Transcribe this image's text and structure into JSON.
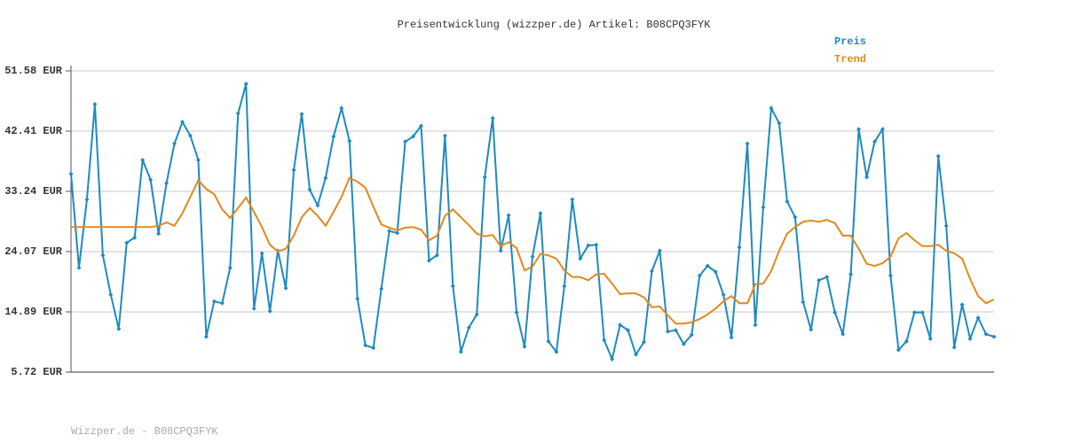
{
  "chart_data": {
    "type": "line",
    "title": "Preisentwicklung (wizzper.de) Artikel: B08CPQ3FYK",
    "footer": "Wizzper.de - B08CPQ3FYK",
    "ylim": [
      5.72,
      51.58
    ],
    "yticks": [
      {
        "value": 5.72,
        "label": "5.72 EUR"
      },
      {
        "value": 14.89,
        "label": "14.89 EUR"
      },
      {
        "value": 24.07,
        "label": "24.07 EUR"
      },
      {
        "value": 33.24,
        "label": "33.24 EUR"
      },
      {
        "value": 42.41,
        "label": "42.41 EUR"
      },
      {
        "value": 51.58,
        "label": "51.58 EUR"
      }
    ],
    "grid": true,
    "legend": "top-right",
    "series": [
      {
        "name": "Preis",
        "color": "#1f8ac0",
        "markers": true,
        "values": [
          35.9,
          21.6,
          32.0,
          46.5,
          23.5,
          17.5,
          12.3,
          25.4,
          26.2,
          38.0,
          35.0,
          26.8,
          34.5,
          40.5,
          43.8,
          41.7,
          38.0,
          11.1,
          16.5,
          16.2,
          21.6,
          45.1,
          49.6,
          15.4,
          23.8,
          15.0,
          24.2,
          18.5,
          36.5,
          45.0,
          33.5,
          31.1,
          35.3,
          41.6,
          45.9,
          40.9,
          16.9,
          9.8,
          9.4,
          18.4,
          27.2,
          26.9,
          40.8,
          41.6,
          43.2,
          22.7,
          23.5,
          41.7,
          18.8,
          8.8,
          12.5,
          14.5,
          35.4,
          44.4,
          24.2,
          29.6,
          14.8,
          9.6,
          23.3,
          29.9,
          10.4,
          8.8,
          18.8,
          32.0,
          23.0,
          25.0,
          25.1,
          10.6,
          7.7,
          12.9,
          12.1,
          8.4,
          10.3,
          21.1,
          24.2,
          11.9,
          12.1,
          10.0,
          11.4,
          20.4,
          21.9,
          21.0,
          17.5,
          11.0,
          24.7,
          40.5,
          12.9,
          30.8,
          45.9,
          43.6,
          31.7,
          29.3,
          16.4,
          12.2,
          19.7,
          20.2,
          14.8,
          11.5,
          20.6,
          42.7,
          35.4,
          40.8,
          42.7,
          20.4,
          9.1,
          10.4,
          14.8,
          14.8,
          10.8,
          38.6,
          28.0,
          9.5,
          16.0,
          10.8,
          14.0,
          11.5,
          11.1
        ]
      },
      {
        "name": "Trend",
        "color": "#e08a1e",
        "markers": false,
        "values": [
          27.8,
          27.8,
          27.8,
          27.8,
          27.8,
          27.8,
          27.8,
          27.8,
          27.8,
          27.8,
          27.8,
          28.0,
          28.5,
          28.0,
          29.9,
          32.4,
          34.9,
          33.6,
          32.8,
          30.5,
          29.2,
          30.7,
          32.3,
          30.1,
          27.8,
          25.1,
          24.1,
          24.5,
          26.5,
          29.3,
          30.7,
          29.5,
          28.0,
          30.1,
          32.4,
          35.3,
          34.7,
          33.8,
          30.9,
          28.2,
          27.7,
          27.3,
          27.7,
          27.8,
          27.4,
          25.8,
          26.5,
          29.5,
          30.5,
          29.3,
          28.1,
          26.8,
          26.4,
          26.6,
          24.9,
          25.5,
          24.6,
          21.2,
          21.8,
          23.7,
          23.5,
          23.0,
          21.2,
          20.2,
          20.2,
          19.7,
          20.6,
          20.7,
          19.2,
          17.6,
          17.7,
          17.7,
          17.1,
          15.6,
          15.7,
          14.4,
          13.1,
          13.1,
          13.3,
          13.8,
          14.5,
          15.4,
          16.5,
          17.3,
          16.2,
          16.2,
          19.1,
          19.2,
          21.1,
          24.2,
          26.8,
          27.8,
          28.6,
          28.8,
          28.6,
          28.9,
          28.4,
          26.5,
          26.5,
          24.5,
          22.2,
          21.9,
          22.3,
          23.3,
          26.1,
          26.9,
          25.8,
          24.9,
          24.9,
          25.1,
          24.2,
          23.8,
          23.0,
          19.9,
          17.3,
          16.2,
          16.8
        ]
      }
    ]
  }
}
